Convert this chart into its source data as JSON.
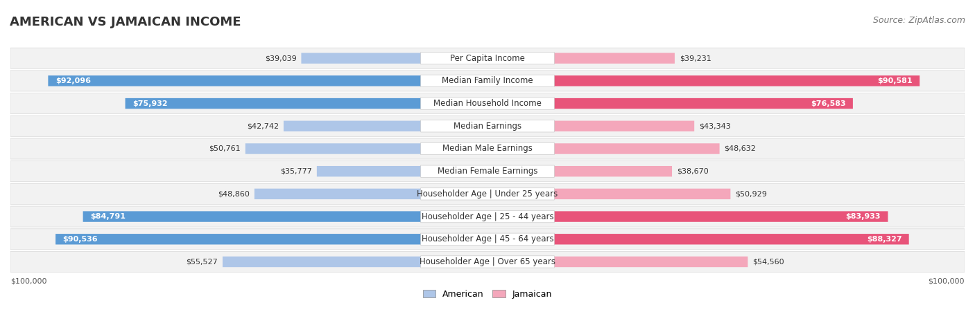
{
  "title": "AMERICAN VS JAMAICAN INCOME",
  "source": "Source: ZipAtlas.com",
  "categories": [
    "Per Capita Income",
    "Median Family Income",
    "Median Household Income",
    "Median Earnings",
    "Median Male Earnings",
    "Median Female Earnings",
    "Householder Age | Under 25 years",
    "Householder Age | 25 - 44 years",
    "Householder Age | 45 - 64 years",
    "Householder Age | Over 65 years"
  ],
  "american_values": [
    39039,
    92096,
    75932,
    42742,
    50761,
    35777,
    48860,
    84791,
    90536,
    55527
  ],
  "jamaican_values": [
    39231,
    90581,
    76583,
    43343,
    48632,
    38670,
    50929,
    83933,
    88327,
    54560
  ],
  "american_labels": [
    "$39,039",
    "$92,096",
    "$75,932",
    "$42,742",
    "$50,761",
    "$35,777",
    "$48,860",
    "$84,791",
    "$90,536",
    "$55,527"
  ],
  "jamaican_labels": [
    "$39,231",
    "$90,581",
    "$76,583",
    "$43,343",
    "$48,632",
    "$38,670",
    "$50,929",
    "$83,933",
    "$88,327",
    "$54,560"
  ],
  "american_color_light": "#aec6e8",
  "american_color_dark": "#5b9bd5",
  "jamaican_color_light": "#f4a7bb",
  "jamaican_color_dark": "#e8547a",
  "max_value": 100000,
  "row_bg_color": "#f0f0f0",
  "row_alt_bg": "#e8e8e8",
  "label_bg": "#ffffff",
  "xlabel_left": "$100,000",
  "xlabel_right": "$100,000",
  "legend_american": "American",
  "legend_jamaican": "Jamaican",
  "title_fontsize": 13,
  "source_fontsize": 9,
  "label_fontsize": 8.5,
  "value_fontsize": 8
}
